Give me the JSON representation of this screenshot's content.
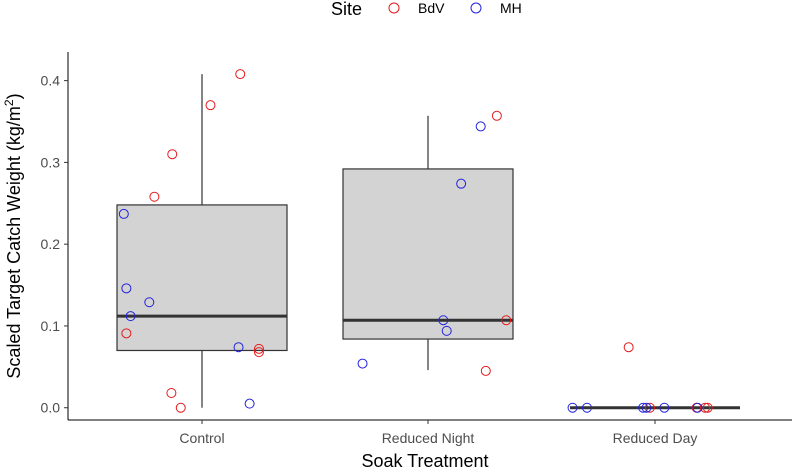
{
  "chart_data": {
    "type": "boxplot-with-jitter",
    "xlabel": "Soak Treatment",
    "ylabel": "Scaled Target Catch Weight  (kg/m",
    "ylabel_sup": "2",
    "ylabel_end": ")",
    "ylim": [
      -0.015,
      0.435
    ],
    "yticks": [
      0.0,
      0.1,
      0.2,
      0.3,
      0.4
    ],
    "ytick_labels": [
      "0.0",
      "0.1",
      "0.2",
      "0.3",
      "0.4"
    ],
    "categories": [
      "Control",
      "Reduced Night",
      "Reduced Day"
    ],
    "legend": {
      "title": "Site",
      "position": "top",
      "entries": [
        {
          "label": "BdV",
          "color": "#e41a1c"
        },
        {
          "label": "MH",
          "color": "#2222dd"
        }
      ]
    },
    "boxes": [
      {
        "category": "Control",
        "whisker_low": 0.0,
        "q1": 0.07,
        "median": 0.112,
        "q3": 0.248,
        "whisker_high": 0.408
      },
      {
        "category": "Reduced Night",
        "whisker_low": 0.046,
        "q1": 0.084,
        "median": 0.107,
        "q3": 0.292,
        "whisker_high": 0.357
      },
      {
        "category": "Reduced Day",
        "whisker_low": 0.0,
        "q1": 0.0,
        "median": 0.0,
        "q3": 0.0,
        "whisker_high": 0.0
      }
    ],
    "points": [
      {
        "category": "Control",
        "jitter": 0.45,
        "y": 0.408,
        "site": "BdV"
      },
      {
        "category": "Control",
        "jitter": 0.1,
        "y": 0.37,
        "site": "BdV"
      },
      {
        "category": "Control",
        "jitter": -0.35,
        "y": 0.31,
        "site": "BdV"
      },
      {
        "category": "Control",
        "jitter": -0.56,
        "y": 0.258,
        "site": "BdV"
      },
      {
        "category": "Control",
        "jitter": -0.89,
        "y": 0.091,
        "site": "BdV"
      },
      {
        "category": "Control",
        "jitter": 0.67,
        "y": 0.072,
        "site": "BdV"
      },
      {
        "category": "Control",
        "jitter": 0.67,
        "y": 0.068,
        "site": "BdV"
      },
      {
        "category": "Control",
        "jitter": -0.36,
        "y": 0.018,
        "site": "BdV"
      },
      {
        "category": "Control",
        "jitter": -0.25,
        "y": 0.0,
        "site": "BdV"
      },
      {
        "category": "Control",
        "jitter": -0.92,
        "y": 0.237,
        "site": "MH"
      },
      {
        "category": "Control",
        "jitter": -0.89,
        "y": 0.146,
        "site": "MH"
      },
      {
        "category": "Control",
        "jitter": -0.84,
        "y": 0.112,
        "site": "MH"
      },
      {
        "category": "Control",
        "jitter": -0.62,
        "y": 0.129,
        "site": "MH"
      },
      {
        "category": "Control",
        "jitter": 0.43,
        "y": 0.074,
        "site": "MH"
      },
      {
        "category": "Control",
        "jitter": 0.56,
        "y": 0.005,
        "site": "MH"
      },
      {
        "category": "Reduced Night",
        "jitter": 0.81,
        "y": 0.357,
        "site": "BdV"
      },
      {
        "category": "Reduced Night",
        "jitter": 0.92,
        "y": 0.107,
        "site": "BdV"
      },
      {
        "category": "Reduced Night",
        "jitter": 0.68,
        "y": 0.045,
        "site": "BdV"
      },
      {
        "category": "Reduced Night",
        "jitter": 0.62,
        "y": 0.344,
        "site": "MH"
      },
      {
        "category": "Reduced Night",
        "jitter": 0.39,
        "y": 0.274,
        "site": "MH"
      },
      {
        "category": "Reduced Night",
        "jitter": 0.18,
        "y": 0.107,
        "site": "MH"
      },
      {
        "category": "Reduced Night",
        "jitter": 0.22,
        "y": 0.094,
        "site": "MH"
      },
      {
        "category": "Reduced Night",
        "jitter": -0.77,
        "y": 0.054,
        "site": "MH"
      },
      {
        "category": "Reduced Day",
        "jitter": -0.31,
        "y": 0.074,
        "site": "BdV"
      },
      {
        "category": "Reduced Day",
        "jitter": -0.06,
        "y": 0.0,
        "site": "BdV"
      },
      {
        "category": "Reduced Day",
        "jitter": 0.49,
        "y": 0.0,
        "site": "BdV"
      },
      {
        "category": "Reduced Day",
        "jitter": 0.59,
        "y": 0.0,
        "site": "BdV"
      },
      {
        "category": "Reduced Day",
        "jitter": 0.62,
        "y": 0.0,
        "site": "BdV"
      },
      {
        "category": "Reduced Day",
        "jitter": -0.97,
        "y": 0.0,
        "site": "MH"
      },
      {
        "category": "Reduced Day",
        "jitter": -0.8,
        "y": 0.0,
        "site": "MH"
      },
      {
        "category": "Reduced Day",
        "jitter": -0.14,
        "y": 0.0,
        "site": "MH"
      },
      {
        "category": "Reduced Day",
        "jitter": -0.1,
        "y": 0.0,
        "site": "MH"
      },
      {
        "category": "Reduced Day",
        "jitter": 0.11,
        "y": 0.0,
        "site": "MH"
      },
      {
        "category": "Reduced Day",
        "jitter": 0.5,
        "y": 0.0,
        "site": "MH"
      }
    ],
    "colors": {
      "box_fill": "#d3d3d3",
      "box_stroke": "#333333",
      "axis": "#000000"
    }
  }
}
